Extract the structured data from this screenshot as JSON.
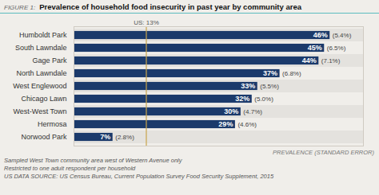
{
  "chart_data": {
    "type": "bar",
    "orientation": "horizontal",
    "title_prefix": "FIGURE 1:",
    "title": "Prevalence of household food insecurity in past year by community area",
    "categories": [
      "Norwood Park",
      "Hermosa",
      "West-West Town",
      "Chicago Lawn",
      "West Englewood",
      "North Lawndale",
      "Gage Park",
      "South Lawndale",
      "Humboldt Park"
    ],
    "values": [
      7,
      29,
      30,
      32,
      33,
      37,
      44,
      45,
      46
    ],
    "value_labels": [
      "7%",
      "29%",
      "30%",
      "32%",
      "33%",
      "37%",
      "44%",
      "45%",
      "46%"
    ],
    "data_labels": true,
    "std_errors": [
      "(2.8%)",
      "(4.6%)",
      "(4.7%)",
      "(5.0%)",
      "(5.5%)",
      "(6.8%)",
      "(7.1%)",
      "(6.5%)",
      "(5.4%)"
    ],
    "color": "#1b3a6b",
    "background_color": "#f0eeea",
    "row_alt_color": "#e4e2de",
    "header_line_color": "#5bbcbf",
    "reference_line": {
      "value": 13,
      "label": "US: 13%",
      "color": "#c8a44a"
    },
    "xlabel": "PREVALENCE (STANDARD ERROR)",
    "xlim": [
      0,
      52
    ],
    "xticks": [],
    "tick_labels": "y",
    "grid": false,
    "notes": [
      "Sampled West Town community area west of Western Avenue only",
      "Restricted to one adult respondent per household",
      "US DATA SOURCE: US Census Bureau, Current Population Survey Food Security Supplement, 2015"
    ]
  }
}
